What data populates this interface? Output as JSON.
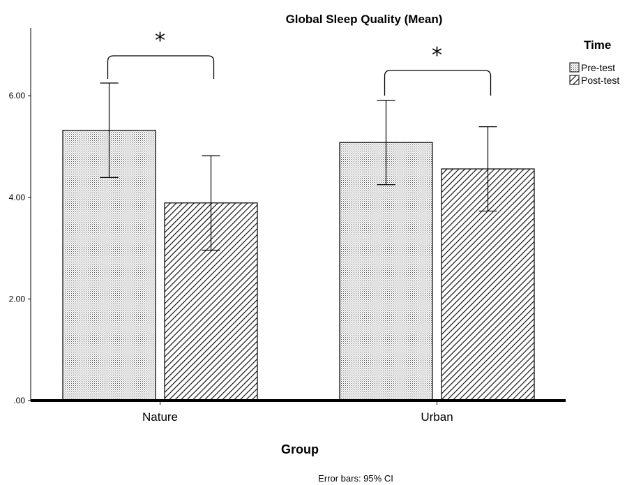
{
  "chart_data": {
    "type": "bar",
    "title": "Global Sleep Quality (Mean)",
    "xlabel": "Group",
    "ylabel": "",
    "categories": [
      "Nature",
      "Urban"
    ],
    "series": [
      {
        "name": "Pre-test",
        "values": [
          5.32,
          5.08
        ],
        "ci_low": [
          4.39,
          4.25
        ],
        "ci_high": [
          6.25,
          5.91
        ],
        "pattern": "dots"
      },
      {
        "name": "Post-test",
        "values": [
          3.89,
          4.56
        ],
        "ci_low": [
          2.96,
          3.73
        ],
        "ci_high": [
          4.82,
          5.39
        ],
        "pattern": "diagonal-hatch"
      }
    ],
    "ylim": [
      0,
      7.3
    ],
    "yticks": [
      0,
      2,
      4,
      6
    ],
    "ytick_labels": [
      ".00",
      "2.00",
      "4.00",
      "6.00"
    ],
    "legend_title": "Time",
    "legend_position": "top-right",
    "footnote": "Error bars: 95% CI",
    "significance": [
      {
        "category": "Nature",
        "marker": "*"
      },
      {
        "category": "Urban",
        "marker": "*"
      }
    ],
    "grid": false
  }
}
